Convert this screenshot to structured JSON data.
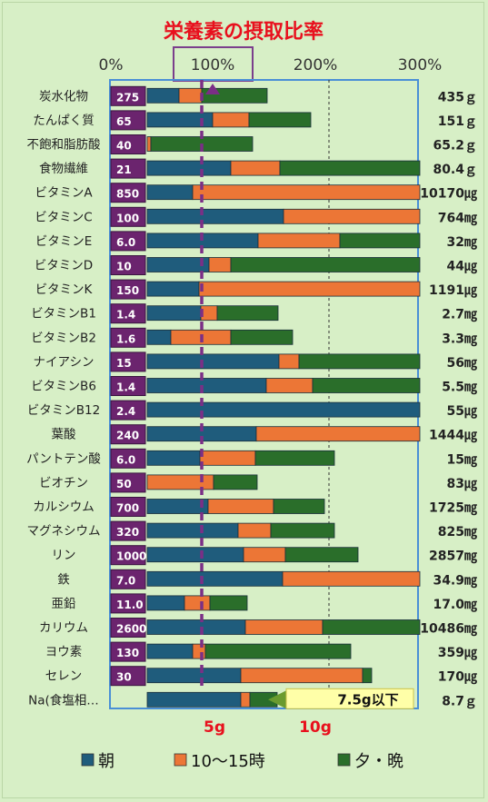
{
  "chart_data": {
    "type": "bar",
    "title": "栄養素の摂取比率",
    "x_ticks": [
      "0%",
      "100%",
      "200%",
      "300%"
    ],
    "xlim": [
      0,
      300
    ],
    "grid": true,
    "legend_position": "bottom",
    "series": [
      {
        "name": "朝",
        "color": "#1f5c7c"
      },
      {
        "name": "10〜15時",
        "color": "#ec7636"
      },
      {
        "name": "夕・晩",
        "color": "#2a6e2a"
      }
    ],
    "rows": [
      {
        "name": "炭水化物",
        "target": "275",
        "segments": [
          35,
          25,
          72
        ],
        "total": "435ｇ"
      },
      {
        "name": "たんぱく質",
        "target": "65",
        "segments": [
          72,
          40,
          68
        ],
        "total": "151ｇ"
      },
      {
        "name": "不飽和脂肪酸",
        "target": "40",
        "segments": [
          0,
          4,
          112
        ],
        "total": "65.2ｇ"
      },
      {
        "name": "食物繊維",
        "target": "21",
        "segments": [
          92,
          54,
          154
        ],
        "total": "80.4ｇ"
      },
      {
        "name": "ビタミンA",
        "target": "850",
        "segments": [
          50,
          250,
          0
        ],
        "total": "10170㎍"
      },
      {
        "name": "ビタミンC",
        "target": "100",
        "segments": [
          150,
          150,
          0
        ],
        "total": "764㎎"
      },
      {
        "name": "ビタミンE",
        "target": "6.0",
        "segments": [
          122,
          90,
          88
        ],
        "total": "32㎎"
      },
      {
        "name": "ビタミンD",
        "target": "10",
        "segments": [
          68,
          24,
          208
        ],
        "total": "44㎍"
      },
      {
        "name": "ビタミンK",
        "target": "150",
        "segments": [
          57,
          243,
          0
        ],
        "total": "1191㎍"
      },
      {
        "name": "ビタミンB1",
        "target": "1.4",
        "segments": [
          59,
          18,
          67
        ],
        "total": "2.7㎎"
      },
      {
        "name": "ビタミンB2",
        "target": "1.6",
        "segments": [
          26,
          66,
          68
        ],
        "total": "3.3㎎"
      },
      {
        "name": "ナイアシン",
        "target": "15",
        "segments": [
          145,
          22,
          133
        ],
        "total": "56㎎"
      },
      {
        "name": "ビタミンB6",
        "target": "1.4",
        "segments": [
          131,
          51,
          118
        ],
        "total": "5.5㎎"
      },
      {
        "name": "ビタミンB12",
        "target": "2.4",
        "segments": [
          300,
          0,
          0
        ],
        "total": "55㎍"
      },
      {
        "name": "葉酸",
        "target": "240",
        "segments": [
          120,
          180,
          0
        ],
        "total": "1444㎍"
      },
      {
        "name": "パントテン酸",
        "target": "6.0",
        "segments": [
          58,
          61,
          87
        ],
        "total": "15㎎"
      },
      {
        "name": "ビオチン",
        "target": "50",
        "segments": [
          0,
          73,
          48
        ],
        "total": "83㎍"
      },
      {
        "name": "カルシウム",
        "target": "700",
        "segments": [
          67,
          72,
          56
        ],
        "total": "1725㎎"
      },
      {
        "name": "マグネシウム",
        "target": "320",
        "segments": [
          100,
          36,
          70
        ],
        "total": "825㎎"
      },
      {
        "name": "リン",
        "target": "1000",
        "segments": [
          106,
          46,
          80
        ],
        "total": "2857㎎"
      },
      {
        "name": "鉄",
        "target": "7.0",
        "segments": [
          149,
          151,
          0
        ],
        "total": "34.9㎎"
      },
      {
        "name": "亜鉛",
        "target": "11.0",
        "segments": [
          41,
          28,
          41
        ],
        "total": "17.0㎎"
      },
      {
        "name": "カリウム",
        "target": "2600",
        "segments": [
          108,
          85,
          107
        ],
        "total": "10486㎎"
      },
      {
        "name": "ヨウ素",
        "target": "130",
        "segments": [
          50,
          14,
          160
        ],
        "total": "359㎍"
      },
      {
        "name": "セレン",
        "target": "30",
        "segments": [
          103,
          134,
          10
        ],
        "total": "170㎍"
      },
      {
        "name": "Na(食塩相…",
        "target": "",
        "segments": [
          103,
          10,
          30
        ],
        "total": "8.7ｇ"
      }
    ],
    "reference_lines": [
      "5g",
      "10g"
    ],
    "callout": "7.5g以下"
  }
}
